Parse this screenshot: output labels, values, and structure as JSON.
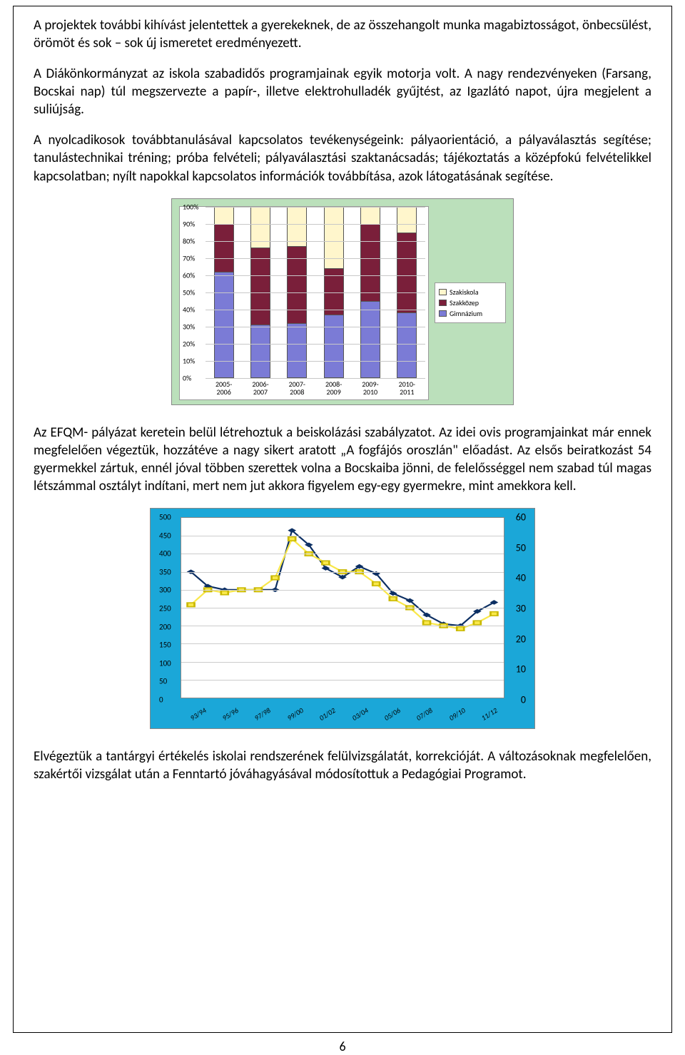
{
  "paragraphs": {
    "p1": "A projektek további kihívást jelentettek a gyerekeknek, de az összehangolt munka magabiztosságot, önbecsülést, örömöt és sok – sok új ismeretet eredményezett.",
    "p2": "A Diákönkormányzat az iskola szabadidős programjainak egyik motorja volt. A nagy rendezvényeken (Farsang, Bocskai nap) túl megszervezte a papír-, illetve elektrohulladék gyűjtést, az Igazlátó napot, újra megjelent a suliújság.",
    "p3": "A nyolcadikosok továbbtanulásával kapcsolatos tevékenységeink: pályaorientáció, a pályaválasztás segítése; tanulástechnikai tréning; próba felvételi; pályaválasztási szaktanácsadás; tájékoztatás a középfokú felvételikkel kapcsolatban; nyílt napokkal kapcsolatos információk továbbítása, azok látogatásának segítése.",
    "p4": "Az EFQM- pályázat keretein belül létrehoztuk a beiskolázási szabályzatot. Az idei ovis programjainkat már ennek megfelelően végeztük, hozzátéve a nagy sikert aratott „A fogfájós oroszlán\" előadást. Az elsős beiratkozást 54 gyermekkel zártuk, ennél jóval többen szerettek volna a Bocskaiba jönni, de felelősséggel nem szabad túl magas létszámmal osztályt indítani, mert nem jut akkora figyelem egy-egy gyermekre, mint amekkora kell.",
    "p5": "Elvégeztük a tantárgyi értékelés iskolai rendszerének felülvizsgálatát, korrekcióját. A változásoknak megfelelően, szakértői vizsgálat után a Fenntartó jóváhagyásával módosítottuk a Pedagógiai Programot."
  },
  "chart1": {
    "type": "stacked-bar-100",
    "background_color": "#bbe0bb",
    "plot_color": "#ffffff",
    "grid_color": "#c8c8c8",
    "yticks": [
      "0%",
      "10%",
      "20%",
      "30%",
      "40%",
      "50%",
      "60%",
      "70%",
      "80%",
      "90%",
      "100%"
    ],
    "categories": [
      "2005-\n2006",
      "2006-\n2007",
      "2007-\n2008",
      "2008-\n2009",
      "2009-\n2010",
      "2010-\n2011"
    ],
    "series": [
      {
        "name": "Gimnázium",
        "color": "#7b7bd6"
      },
      {
        "name": "Szakközep",
        "color": "#7a1f3a"
      },
      {
        "name": "Szakiskola",
        "color": "#fff6cc"
      }
    ],
    "legend_order": [
      "Szakiskola",
      "Szakközep",
      "Gimnázium"
    ],
    "data": [
      {
        "gimn": 62,
        "szak": 28,
        "szi": 10
      },
      {
        "gimn": 31,
        "szak": 45,
        "szi": 24
      },
      {
        "gimn": 32,
        "szak": 45,
        "szi": 23
      },
      {
        "gimn": 37,
        "szak": 27,
        "szi": 36
      },
      {
        "gimn": 45,
        "szak": 45,
        "szi": 10
      },
      {
        "gimn": 38,
        "szak": 47,
        "szi": 15
      }
    ]
  },
  "chart2": {
    "type": "line",
    "background_color": "#1ba7d8",
    "plot_color": "#ffffff",
    "grid_color": "#cccccc",
    "y_left": {
      "min": 0,
      "max": 500,
      "step": 50
    },
    "y_right": {
      "min": 0,
      "max": 60,
      "step": 10
    },
    "categories": [
      "93/94",
      "95/96",
      "97/98",
      "99/00",
      "01/02",
      "03/04",
      "05/06",
      "07/08",
      "09/10",
      "11/12"
    ],
    "series": [
      {
        "name": "left-line",
        "color": "#0c2f63",
        "marker": "diamond",
        "axis": "left",
        "x": [
          0,
          0.5,
          1,
          1.5,
          2,
          2.5,
          3,
          3.5,
          4,
          4.5,
          5,
          5.5,
          6,
          6.5,
          7,
          7.5,
          8,
          8.5,
          9
        ],
        "values": [
          350,
          310,
          300,
          300,
          300,
          300,
          465,
          425,
          360,
          335,
          365,
          345,
          290,
          270,
          230,
          205,
          200,
          240,
          265
        ]
      },
      {
        "name": "right-line",
        "color": "#f9e84a",
        "marker": "square",
        "axis": "right",
        "x": [
          0,
          0.5,
          1,
          1.5,
          2,
          2.5,
          3,
          3.5,
          4,
          4.5,
          5,
          5.5,
          6,
          6.5,
          7,
          7.5,
          8,
          8.5,
          9
        ],
        "values": [
          31,
          36,
          35,
          36,
          36,
          40,
          53,
          48,
          45,
          42,
          42,
          38,
          33,
          30,
          25,
          24,
          23,
          25,
          28
        ]
      }
    ]
  },
  "page_number": "6"
}
